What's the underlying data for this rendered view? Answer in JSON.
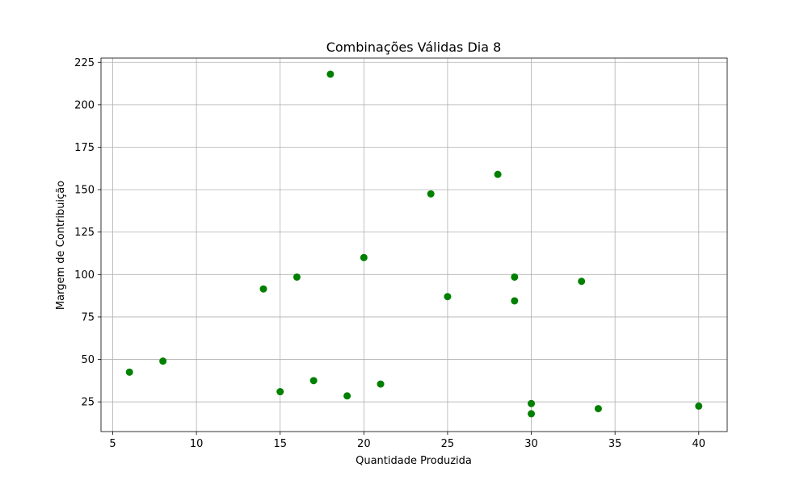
{
  "chart_data": {
    "type": "scatter",
    "title": "Combinações Válidas Dia 8",
    "xlabel": "Quantidade Produzida",
    "ylabel": "Margem de Contribuição",
    "xlim": [
      4.3,
      41.7
    ],
    "ylim": [
      7.5,
      227.5
    ],
    "x_ticks": [
      5,
      10,
      15,
      20,
      25,
      30,
      35,
      40
    ],
    "y_ticks": [
      25,
      50,
      75,
      100,
      125,
      150,
      175,
      200,
      225
    ],
    "x_tick_labels": [
      "5",
      "10",
      "15",
      "20",
      "25",
      "30",
      "35",
      "40"
    ],
    "y_tick_labels": [
      "25",
      "50",
      "75",
      "100",
      "125",
      "150",
      "175",
      "200",
      "225"
    ],
    "grid": true,
    "series": [
      {
        "color": "#008000",
        "points": [
          {
            "x": 6,
            "y": 42.5
          },
          {
            "x": 8,
            "y": 49
          },
          {
            "x": 14,
            "y": 91.5
          },
          {
            "x": 15,
            "y": 31
          },
          {
            "x": 16,
            "y": 98.5
          },
          {
            "x": 17,
            "y": 37.5
          },
          {
            "x": 18,
            "y": 218
          },
          {
            "x": 19,
            "y": 28.5
          },
          {
            "x": 20,
            "y": 110
          },
          {
            "x": 21,
            "y": 35.5
          },
          {
            "x": 24,
            "y": 147.5
          },
          {
            "x": 25,
            "y": 87
          },
          {
            "x": 28,
            "y": 159
          },
          {
            "x": 29,
            "y": 98.5
          },
          {
            "x": 29,
            "y": 84.5
          },
          {
            "x": 30,
            "y": 24
          },
          {
            "x": 30,
            "y": 18
          },
          {
            "x": 33,
            "y": 96
          },
          {
            "x": 34,
            "y": 21
          },
          {
            "x": 40,
            "y": 22.5
          }
        ]
      }
    ]
  }
}
